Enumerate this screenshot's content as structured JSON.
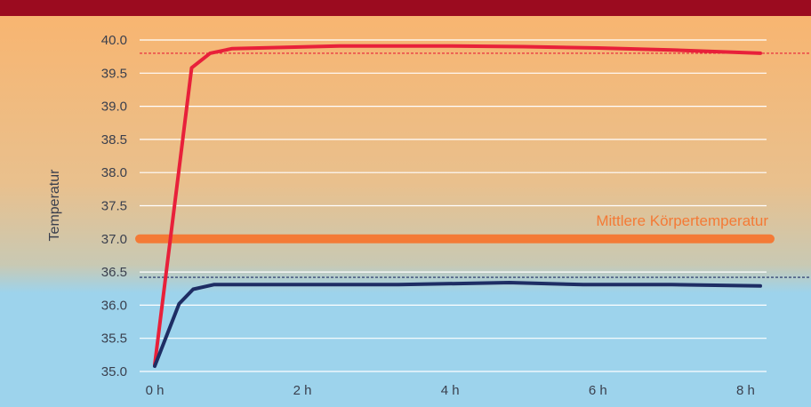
{
  "chart_data": {
    "type": "line",
    "ylabel": "Temperatur",
    "ylim": [
      35.0,
      40.0
    ],
    "y_ticks": [
      "35.0",
      "35.5",
      "36.0",
      "36.5",
      "37.0",
      "37.5",
      "38.0",
      "38.5",
      "39.0",
      "39.5",
      "40.0"
    ],
    "xlim": [
      0,
      8.2
    ],
    "x_ticks": [
      {
        "value": 0,
        "label": "0 h"
      },
      {
        "value": 2,
        "label": "2 h"
      },
      {
        "value": 4,
        "label": "4 h"
      },
      {
        "value": 6,
        "label": "6 h"
      },
      {
        "value": 8,
        "label": "8 h"
      }
    ],
    "grid": true,
    "background_gradient": [
      "#f9b46e",
      "#9dd3ec"
    ],
    "series": [
      {
        "color": "#e8203a",
        "points": [
          {
            "x": 0,
            "y": 35.1
          },
          {
            "x": 0.5,
            "y": 39.58
          },
          {
            "x": 0.75,
            "y": 39.8
          },
          {
            "x": 1.05,
            "y": 39.87
          },
          {
            "x": 2.5,
            "y": 39.91
          },
          {
            "x": 4.0,
            "y": 39.91
          },
          {
            "x": 5.0,
            "y": 39.9
          },
          {
            "x": 6.0,
            "y": 39.88
          },
          {
            "x": 7.0,
            "y": 39.85
          },
          {
            "x": 8.2,
            "y": 39.8
          }
        ]
      },
      {
        "color": "#1e2d64",
        "points": [
          {
            "x": 0,
            "y": 35.08
          },
          {
            "x": 0.33,
            "y": 36.02
          },
          {
            "x": 0.52,
            "y": 36.24
          },
          {
            "x": 0.8,
            "y": 36.31
          },
          {
            "x": 1.5,
            "y": 36.31
          },
          {
            "x": 3.3,
            "y": 36.31
          },
          {
            "x": 4.8,
            "y": 36.34
          },
          {
            "x": 5.8,
            "y": 36.31
          },
          {
            "x": 7.0,
            "y": 36.31
          },
          {
            "x": 8.2,
            "y": 36.29
          }
        ]
      }
    ],
    "reference_lines": [
      {
        "y": 37.0,
        "label": "Mittlere Körpertemperatur",
        "color": "#f47a36",
        "style": "thick"
      },
      {
        "y": 39.8,
        "color": "#e8203a",
        "style": "dashed"
      },
      {
        "y": 36.42,
        "color": "#1e2d64",
        "style": "dashed"
      }
    ]
  },
  "header": {
    "color": "#9b0b1f"
  }
}
